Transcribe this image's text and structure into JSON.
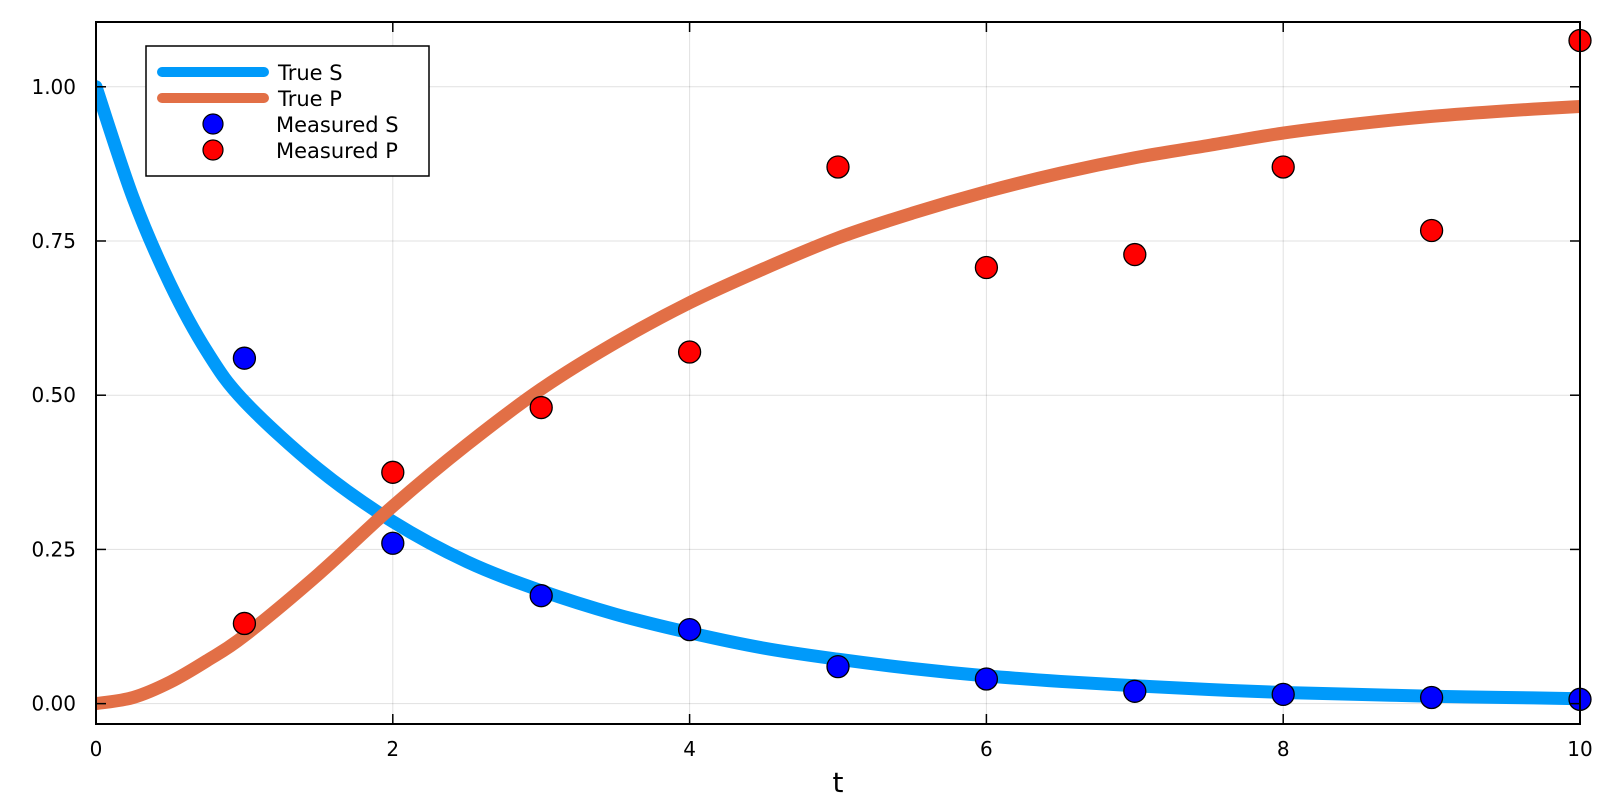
{
  "chart_data": {
    "type": "line",
    "title": "",
    "xlabel": "t",
    "ylabel": "",
    "xlim": [
      0,
      10
    ],
    "ylim": [
      -0.033,
      1.105
    ],
    "grid": true,
    "legend_position": "top-left",
    "x_ticks": [
      0,
      2,
      4,
      6,
      8,
      10
    ],
    "x_tick_labels": [
      "0",
      "2",
      "4",
      "6",
      "8",
      "10"
    ],
    "y_ticks": [
      0,
      0.25,
      0.5,
      0.75,
      1.0
    ],
    "y_tick_labels": [
      "0.00",
      "0.25",
      "0.50",
      "0.75",
      "1.00"
    ],
    "series": [
      {
        "name": "True S",
        "kind": "line",
        "color": "#009AFA",
        "x": [
          0,
          0.25,
          0.5,
          0.75,
          1,
          1.5,
          2,
          2.5,
          3,
          3.5,
          4,
          4.5,
          5,
          5.5,
          6,
          6.5,
          7,
          7.5,
          8,
          8.5,
          9,
          9.5,
          10
        ],
        "y": [
          1.0,
          0.82,
          0.68,
          0.57,
          0.49,
          0.38,
          0.295,
          0.23,
          0.183,
          0.145,
          0.115,
          0.09,
          0.072,
          0.057,
          0.045,
          0.036,
          0.029,
          0.023,
          0.018,
          0.015,
          0.012,
          0.01,
          0.008
        ]
      },
      {
        "name": "True P",
        "kind": "line",
        "color": "#E26F46",
        "x": [
          0,
          0.25,
          0.5,
          0.75,
          1,
          1.5,
          2,
          2.5,
          3,
          3.5,
          4,
          4.5,
          5,
          5.5,
          6,
          6.5,
          7,
          7.5,
          8,
          8.5,
          9,
          9.5,
          10
        ],
        "y": [
          0.0,
          0.01,
          0.035,
          0.07,
          0.11,
          0.21,
          0.32,
          0.42,
          0.51,
          0.585,
          0.65,
          0.705,
          0.755,
          0.795,
          0.83,
          0.86,
          0.885,
          0.905,
          0.925,
          0.94,
          0.952,
          0.961,
          0.968
        ]
      },
      {
        "name": "Measured S",
        "kind": "scatter",
        "color": "#0000FF",
        "x": [
          1,
          2,
          3,
          4,
          5,
          6,
          7,
          8,
          9,
          10
        ],
        "y": [
          0.56,
          0.26,
          0.175,
          0.12,
          0.06,
          0.04,
          0.02,
          0.015,
          0.01,
          0.007
        ]
      },
      {
        "name": "Measured P",
        "kind": "scatter",
        "color": "#FF0000",
        "x": [
          1,
          2,
          3,
          4,
          5,
          6,
          7,
          8,
          9,
          10
        ],
        "y": [
          0.13,
          0.375,
          0.48,
          0.57,
          0.87,
          0.707,
          0.728,
          0.87,
          0.767,
          1.075
        ]
      }
    ]
  }
}
